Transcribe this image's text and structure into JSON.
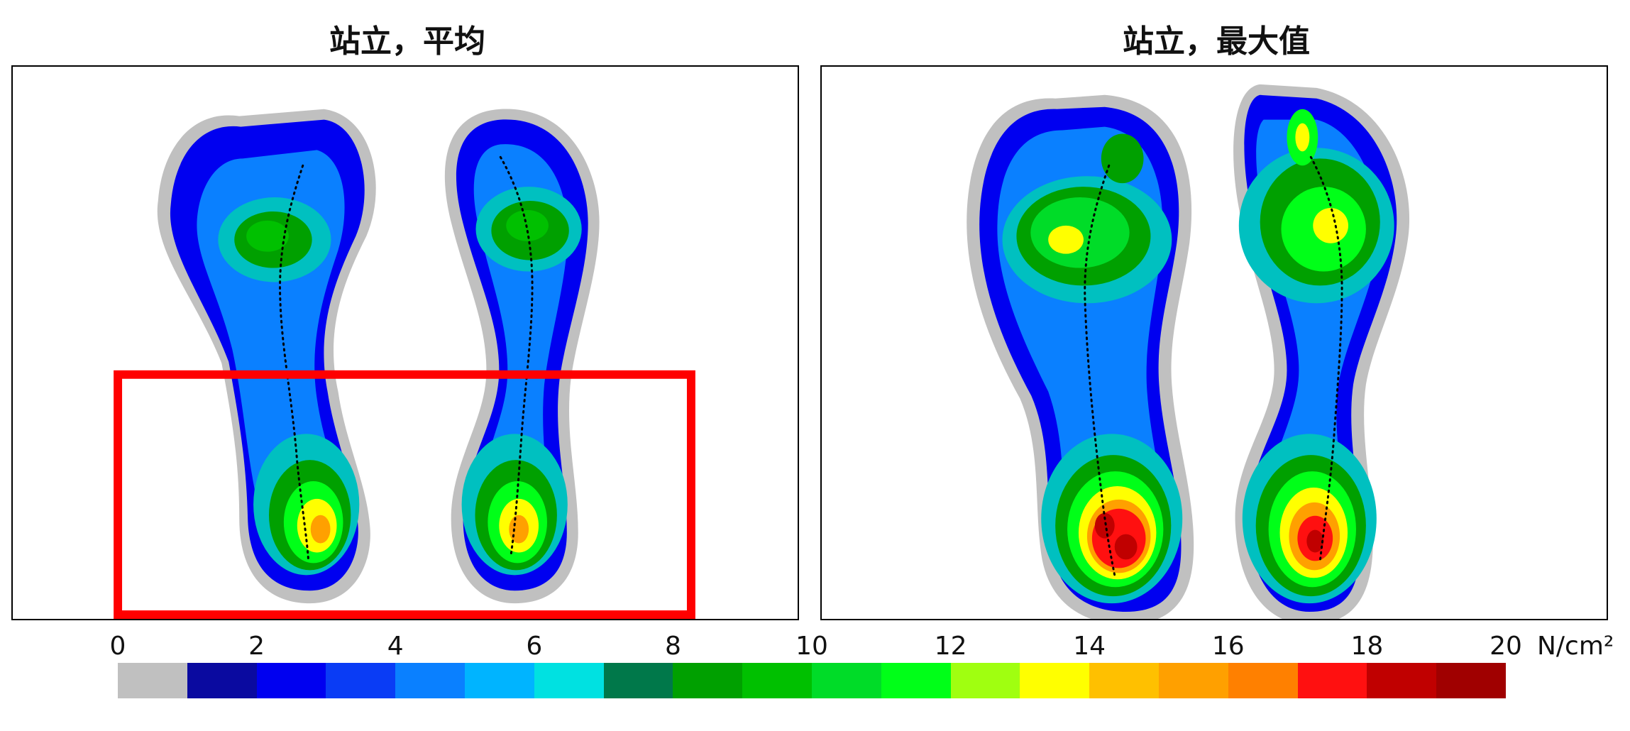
{
  "left_panel": {
    "title": "站立，平均"
  },
  "right_panel": {
    "title": "站立，最大值"
  },
  "colorbar": {
    "ticks": [
      "0",
      "2",
      "4",
      "6",
      "8",
      "10",
      "12",
      "14",
      "16",
      "18",
      "20"
    ],
    "unit": "N/cm²",
    "colors": [
      "#c0c0c0",
      "#0a0aa0",
      "#0000f0",
      "#0a3cf5",
      "#0a80ff",
      "#00b4ff",
      "#00e1e1",
      "#00784a",
      "#00a000",
      "#00c000",
      "#00dc28",
      "#00ff18",
      "#a0ff10",
      "#ffff00",
      "#ffc000",
      "#ffa000",
      "#ff8000",
      "#ff1010",
      "#c00000",
      "#a00000"
    ]
  },
  "highlight": {
    "color": "#ff0000"
  }
}
